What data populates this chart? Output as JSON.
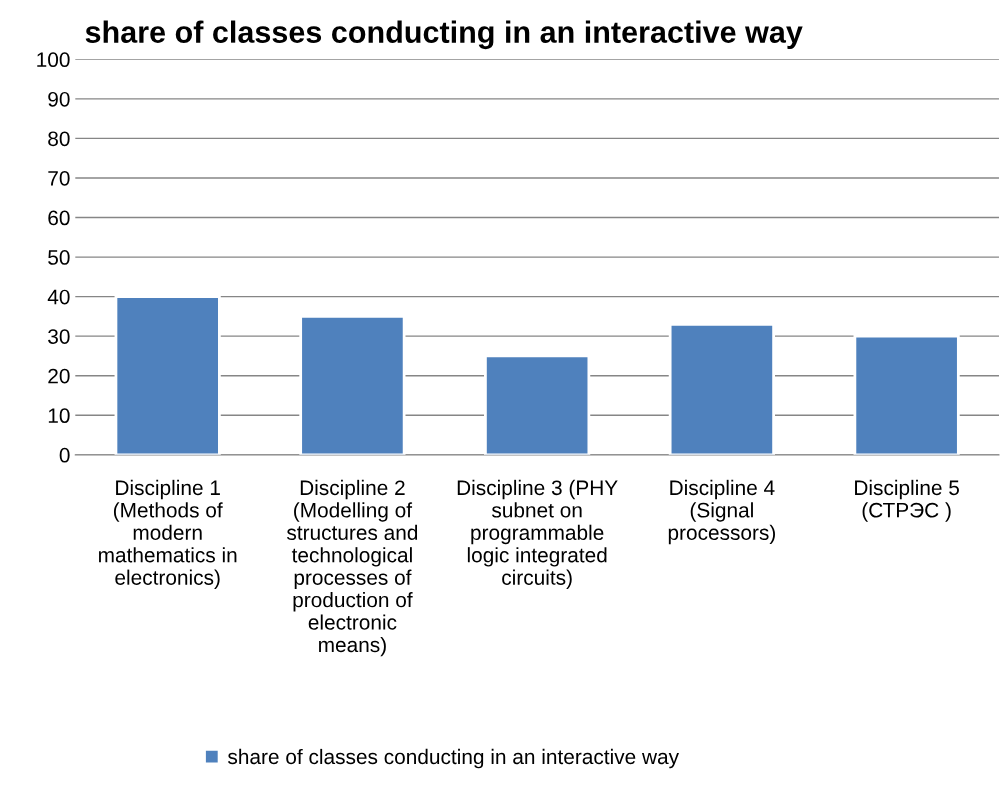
{
  "chart_data": {
    "type": "bar",
    "title": "share of classes conducting in an interactive way",
    "categories": [
      "Discipline 1\n(Methods of\nmodern\nmathematics in\nelectronics)",
      "Discipline 2\n(Modelling of\nstructures and\ntechnological\nprocesses of\nproduction of\nelectronic\nmeans)",
      "Discipline 3 (PHY\nsubnet on\nprogrammable\nlogic integrated\ncircuits)",
      "Discipline 4\n(Signal\nprocessors)",
      "Discipline 5\n(СТРЭС )"
    ],
    "series": [
      {
        "name": "share of classes conducting in an interactive way",
        "color": "#4f81bd",
        "values": [
          40,
          35,
          25,
          33,
          30
        ]
      }
    ],
    "ylim": [
      0,
      100
    ],
    "yticks": [
      0,
      10,
      20,
      30,
      40,
      50,
      60,
      70,
      80,
      90,
      100
    ],
    "grid": "y",
    "legend": "bottom"
  }
}
